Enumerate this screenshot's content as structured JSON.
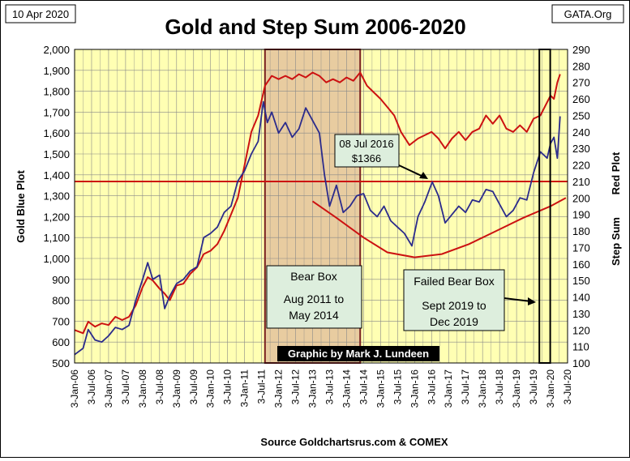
{
  "chart_data": {
    "type": "line",
    "title": "Gold and Step Sum 2006-2020",
    "date_label": "10 Apr 2020",
    "site_label": "GATA.Org",
    "source": "Source Goldchartsrus.com & COMEX",
    "credit": "Graphic by Mark J. Lundeen",
    "ylabel_left": "Gold   Blue Plot",
    "ylabel_right_sum": "Step Sum",
    "ylabel_right_plot": "Red Plot",
    "ylim_left": [
      500,
      2000
    ],
    "ylim_right": [
      100,
      290
    ],
    "yticks_left": [
      "500",
      "600",
      "700",
      "800",
      "900",
      "1,000",
      "1,100",
      "1,200",
      "1,300",
      "1,400",
      "1,500",
      "1,600",
      "1,700",
      "1,800",
      "1,900",
      "2,000"
    ],
    "yticks_right": [
      "100",
      "110",
      "120",
      "130",
      "140",
      "150",
      "160",
      "170",
      "180",
      "190",
      "200",
      "210",
      "220",
      "230",
      "240",
      "250",
      "260",
      "270",
      "280",
      "290"
    ],
    "xticks": [
      "3-Jan-06",
      "3-Jul-06",
      "3-Jan-07",
      "3-Jul-07",
      "3-Jan-08",
      "3-Jul-08",
      "3-Jan-09",
      "3-Jul-09",
      "3-Jan-10",
      "3-Jul-10",
      "3-Jan-11",
      "3-Jul-11",
      "3-Jan-12",
      "3-Jul-12",
      "3-Jan-13",
      "3-Jul-13",
      "3-Jan-14",
      "3-Jul-14",
      "3-Jan-15",
      "3-Jul-15",
      "3-Jan-16",
      "3-Jul-16",
      "3-Jan-17",
      "3-Jul-17",
      "3-Jan-18",
      "3-Jul-18",
      "3-Jan-19",
      "3-Jul-19",
      "3-Jan-20",
      "3-Jul-20"
    ],
    "x_range": [
      2006.0,
      2020.5
    ],
    "grid": true,
    "series": [
      {
        "name": "Gold",
        "axis": "left",
        "color": "#2b2b8c",
        "x": [
          2006.0,
          2006.25,
          2006.4,
          2006.6,
          2006.8,
          2007.0,
          2007.2,
          2007.4,
          2007.6,
          2007.8,
          2008.0,
          2008.15,
          2008.3,
          2008.5,
          2008.65,
          2008.8,
          2009.0,
          2009.2,
          2009.4,
          2009.6,
          2009.8,
          2010.0,
          2010.2,
          2010.4,
          2010.6,
          2010.8,
          2011.0,
          2011.2,
          2011.4,
          2011.55,
          2011.67,
          2011.8,
          2012.0,
          2012.2,
          2012.4,
          2012.6,
          2012.8,
          2013.0,
          2013.2,
          2013.35,
          2013.5,
          2013.7,
          2013.9,
          2014.1,
          2014.3,
          2014.5,
          2014.7,
          2014.9,
          2015.1,
          2015.3,
          2015.5,
          2015.7,
          2015.92,
          2016.1,
          2016.3,
          2016.52,
          2016.7,
          2016.9,
          2017.1,
          2017.3,
          2017.5,
          2017.7,
          2017.9,
          2018.1,
          2018.3,
          2018.5,
          2018.7,
          2018.9,
          2019.1,
          2019.3,
          2019.5,
          2019.7,
          2019.9,
          2020.0,
          2020.1,
          2020.2,
          2020.28
        ],
        "y": [
          540,
          570,
          660,
          610,
          600,
          630,
          670,
          660,
          680,
          800,
          900,
          980,
          900,
          920,
          760,
          820,
          880,
          900,
          940,
          960,
          1100,
          1120,
          1150,
          1220,
          1250,
          1370,
          1420,
          1500,
          1560,
          1750,
          1650,
          1700,
          1600,
          1650,
          1580,
          1620,
          1720,
          1660,
          1600,
          1400,
          1250,
          1350,
          1220,
          1250,
          1300,
          1310,
          1230,
          1200,
          1250,
          1180,
          1150,
          1120,
          1060,
          1200,
          1270,
          1366,
          1300,
          1170,
          1210,
          1250,
          1220,
          1280,
          1270,
          1330,
          1320,
          1260,
          1200,
          1230,
          1290,
          1280,
          1410,
          1510,
          1480,
          1550,
          1580,
          1480,
          1680
        ]
      },
      {
        "name": "Step Sum",
        "axis": "right",
        "color": "#cc1111",
        "x": [
          2006.0,
          2006.25,
          2006.4,
          2006.6,
          2006.8,
          2007.0,
          2007.2,
          2007.4,
          2007.6,
          2007.8,
          2008.0,
          2008.15,
          2008.3,
          2008.5,
          2008.65,
          2008.8,
          2009.0,
          2009.2,
          2009.4,
          2009.6,
          2009.8,
          2010.0,
          2010.2,
          2010.4,
          2010.6,
          2010.8,
          2011.0,
          2011.2,
          2011.4,
          2011.6,
          2011.8,
          2012.0,
          2012.2,
          2012.4,
          2012.6,
          2012.8,
          2013.0,
          2013.2,
          2013.4,
          2013.6,
          2013.8,
          2014.0,
          2014.2,
          2014.4,
          2014.6,
          2014.8,
          2015.0,
          2015.2,
          2015.4,
          2015.6,
          2015.85,
          2016.1,
          2016.3,
          2016.5,
          2016.7,
          2016.9,
          2017.1,
          2017.3,
          2017.5,
          2017.7,
          2017.9,
          2018.1,
          2018.3,
          2018.5,
          2018.7,
          2018.9,
          2019.1,
          2019.3,
          2019.5,
          2019.7,
          2019.9,
          2020.0,
          2020.1,
          2020.2,
          2020.28
        ],
        "y": [
          120,
          118,
          125,
          122,
          124,
          123,
          128,
          126,
          128,
          135,
          146,
          152,
          150,
          145,
          142,
          138,
          147,
          148,
          154,
          158,
          166,
          168,
          172,
          180,
          190,
          200,
          220,
          240,
          250,
          268,
          274,
          272,
          274,
          272,
          275,
          273,
          276,
          274,
          270,
          272,
          270,
          273,
          271,
          276,
          268,
          264,
          260,
          255,
          250,
          240,
          232,
          236,
          238,
          240,
          236,
          230,
          236,
          240,
          235,
          240,
          242,
          250,
          245,
          250,
          242,
          240,
          244,
          240,
          248,
          250,
          258,
          262,
          260,
          270,
          275
        ]
      }
    ],
    "annotations": {
      "bear_box_title": "Bear Box",
      "bear_box_range": "Aug 2011 to May 2014",
      "failed_box_title": "Failed Bear Box",
      "failed_box_range": "Sept 2019 to Dec 2019",
      "callout_date": "08 Jul 2016",
      "callout_value": "$1366"
    },
    "reference_line_right": 210,
    "bear_box_x": [
      2011.6,
      2014.4
    ],
    "failed_box_x": [
      2019.67,
      2019.99
    ],
    "bowl_curve_right": {
      "x": [
        2013.0,
        2013.7,
        2014.5,
        2015.2,
        2016.0,
        2016.8,
        2017.6,
        2018.4,
        2019.2,
        2020.0,
        2020.45
      ],
      "y": [
        198,
        188,
        176,
        167,
        164,
        166,
        172,
        180,
        188,
        195,
        200
      ]
    },
    "colors": {
      "plot_bg": "#ffffb3",
      "bear_box_fill": "#e8cca0",
      "annotation_box": "#ddeedd",
      "grid": "#888888",
      "credit_bg": "#000000",
      "credit_text": "#ffffff",
      "reference_line": "#cc1111"
    }
  }
}
